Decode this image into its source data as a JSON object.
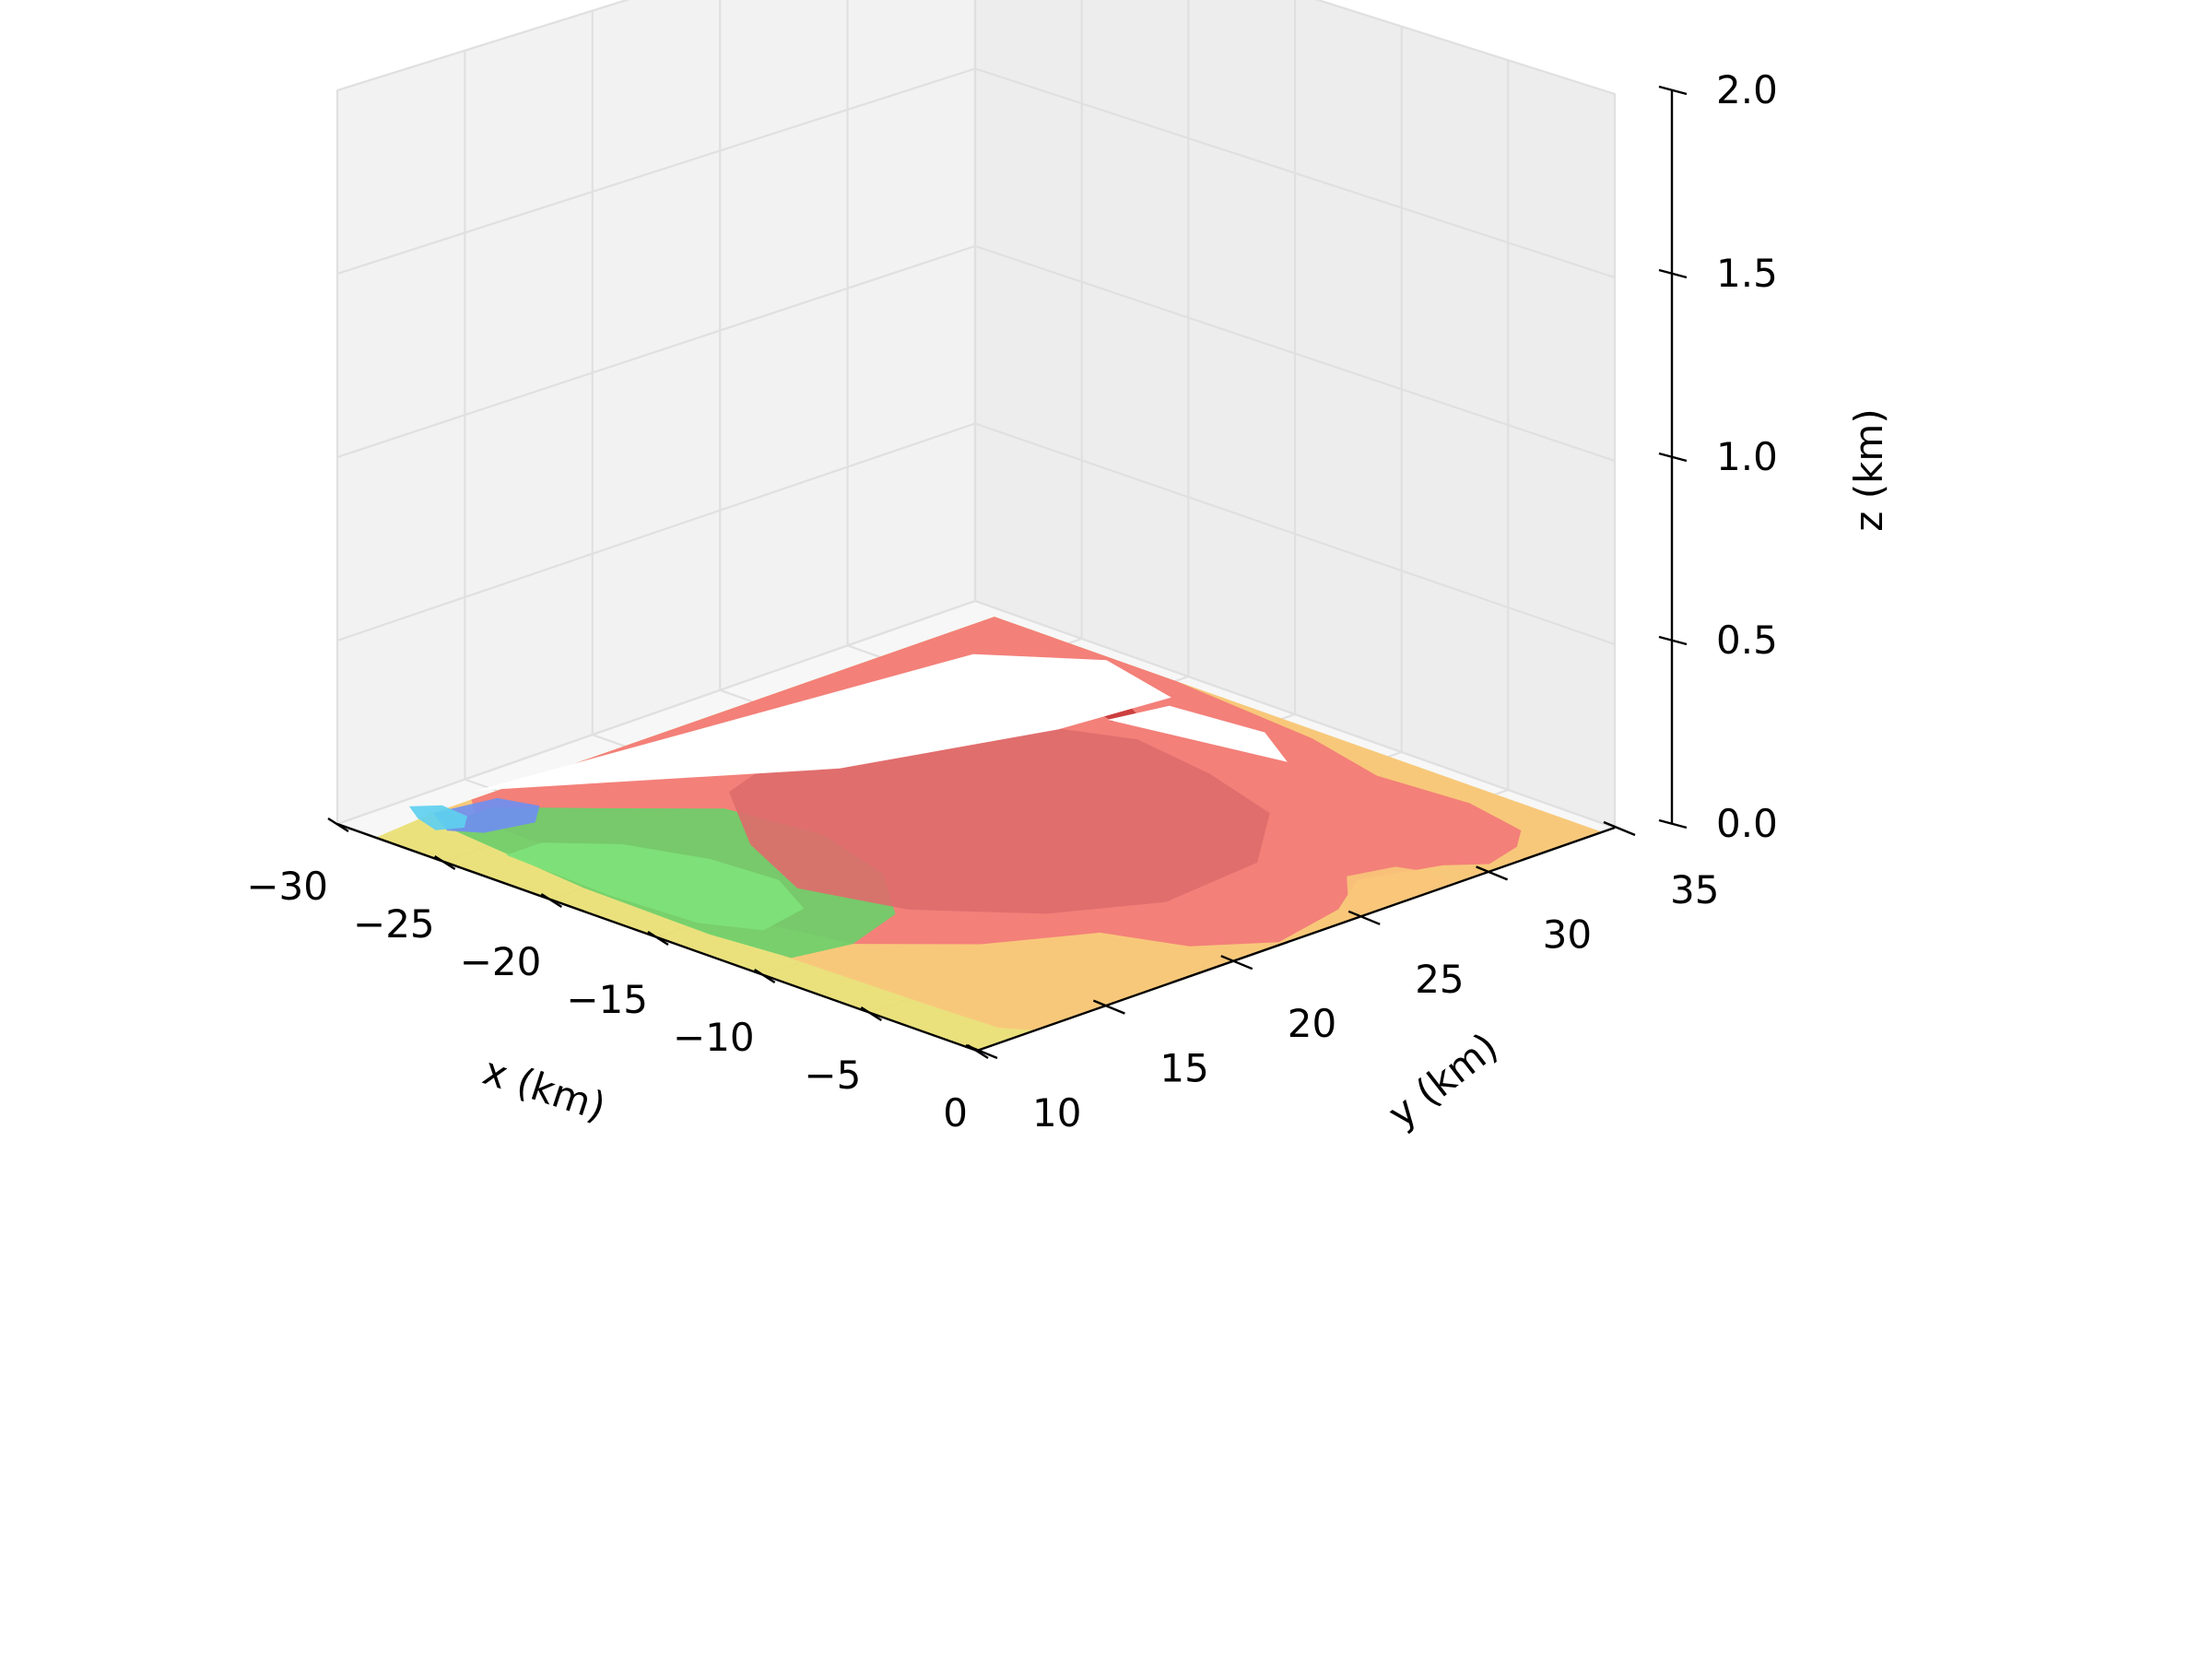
{
  "chart_data": {
    "type": "3d-contour",
    "title": "",
    "xlabel": "x (km)",
    "ylabel": "y (km)",
    "zlabel": "z (km)",
    "xlim": [
      -30,
      0
    ],
    "ylim": [
      10,
      35
    ],
    "zlim": [
      0,
      2
    ],
    "xticks": [
      -30,
      -25,
      -20,
      -15,
      -10,
      -5,
      0
    ],
    "yticks": [
      10,
      15,
      20,
      25,
      30,
      35
    ],
    "zticks": [
      0.0,
      0.5,
      1.0,
      1.5,
      2.0
    ],
    "xtick_labels": [
      "−30",
      "−25",
      "−20",
      "−15",
      "−10",
      "−5",
      "0"
    ],
    "ytick_labels": [
      "10",
      "15",
      "20",
      "25",
      "30",
      "35"
    ],
    "ztick_labels": [
      "0.0",
      "0.5",
      "1.0",
      "1.5",
      "2.0"
    ],
    "grid": true,
    "contour_plane_z": 0,
    "contour_levels": [
      {
        "name": "light-blue",
        "color": "#5ecfef"
      },
      {
        "name": "blue",
        "color": "#6f8ff0"
      },
      {
        "name": "green",
        "color": "#6dcf6a"
      },
      {
        "name": "light-green",
        "color": "#7fe27a"
      },
      {
        "name": "yellow",
        "color": "#e8de72"
      },
      {
        "name": "orange",
        "color": "#f8c57a"
      },
      {
        "name": "red",
        "color": "#f27a78"
      },
      {
        "name": "dark-red",
        "color": "#de6c6c"
      },
      {
        "name": "crimson",
        "color": "#c83a3a"
      }
    ],
    "regions": [
      {
        "level": "yellow",
        "polygon": [
          [
            -28.5,
            12.5
          ],
          [
            -28.2,
            10
          ],
          [
            0,
            10
          ],
          [
            0,
            34.5
          ],
          [
            -28.5,
            34.5
          ]
        ]
      },
      {
        "level": "orange",
        "polygon": [
          [
            -28.5,
            13
          ],
          [
            -27.5,
            12
          ],
          [
            -20,
            11.6
          ],
          [
            -14,
            11.4
          ],
          [
            -9,
            11.5
          ],
          [
            -4,
            11.6
          ],
          [
            -1,
            11.7
          ],
          [
            -0.5,
            12
          ],
          [
            0,
            12.3
          ],
          [
            0,
            34.5
          ],
          [
            -28.5,
            34.5
          ]
        ]
      },
      {
        "level": "red",
        "polygon": [
          [
            -28.5,
            14
          ],
          [
            -27,
            13
          ],
          [
            -20,
            12.8
          ],
          [
            -14,
            12.8
          ],
          [
            -10,
            13.5
          ],
          [
            -7,
            16
          ],
          [
            -5,
            19
          ],
          [
            -2,
            20
          ],
          [
            -0.2,
            22
          ],
          [
            -1,
            25
          ],
          [
            -2.5,
            27
          ],
          [
            -1.5,
            29.5
          ],
          [
            -0.5,
            30.5
          ],
          [
            -1,
            32
          ],
          [
            -2,
            33
          ],
          [
            -5,
            33.5
          ],
          [
            -9,
            33.2
          ],
          [
            -13,
            34
          ],
          [
            -20,
            34.5
          ],
          [
            -28.5,
            34.5
          ]
        ]
      },
      {
        "level": "orange",
        "polygon": [
          [
            -0.3,
            24.5
          ],
          [
            -1.5,
            25.8
          ],
          [
            -3,
            27
          ],
          [
            -2.5,
            28.5
          ],
          [
            -1,
            29
          ],
          [
            0,
            28.5
          ]
        ]
      },
      {
        "level": "green",
        "polygon": [
          [
            -27.5,
            12
          ],
          [
            -20,
            11.3
          ],
          [
            -14,
            11.2
          ],
          [
            -10.5,
            11.5
          ],
          [
            -10,
            13.5
          ],
          [
            -11,
            16
          ],
          [
            -14,
            18
          ],
          [
            -18,
            19
          ],
          [
            -22,
            18.5
          ],
          [
            -25,
            16
          ],
          [
            -27.5,
            14
          ]
        ]
      },
      {
        "level": "light-green",
        "polygon": [
          [
            -24,
            11.6
          ],
          [
            -19,
            11.4
          ],
          [
            -15,
            11.6
          ],
          [
            -13,
            12.5
          ],
          [
            -13.5,
            14.5
          ],
          [
            -16,
            15.6
          ],
          [
            -19,
            15.4
          ],
          [
            -22,
            14.5
          ],
          [
            -24,
            13
          ]
        ]
      },
      {
        "level": "blue",
        "polygon": [
          [
            -28.5,
            12.5
          ],
          [
            -27,
            11.8
          ],
          [
            -26,
            12.4
          ],
          [
            -25.5,
            14
          ],
          [
            -26.5,
            15
          ],
          [
            -28,
            14.6
          ]
        ]
      },
      {
        "level": "light-blue",
        "polygon": [
          [
            -29.5,
            12.4
          ],
          [
            -28.5,
            11.9
          ],
          [
            -27.3,
            11.6
          ],
          [
            -26.8,
            12.3
          ],
          [
            -27.5,
            13
          ],
          [
            -28.8,
            13.1
          ]
        ]
      },
      {
        "level": "dark-red",
        "polygon": [
          [
            -23,
            19.5
          ],
          [
            -19,
            17
          ],
          [
            -15,
            15.5
          ],
          [
            -11,
            16.5
          ],
          [
            -7.5,
            19
          ],
          [
            -5.5,
            22
          ],
          [
            -6,
            26
          ],
          [
            -9,
            29
          ],
          [
            -13,
            30
          ],
          [
            -17,
            30.5
          ],
          [
            -21,
            29
          ],
          [
            -23.5,
            26
          ],
          [
            -24,
            22
          ]
        ]
      },
      {
        "level": "crimson",
        "polygon": [
          [
            -24,
            28.5
          ],
          [
            -22.5,
            27.8
          ],
          [
            -21.2,
            28.3
          ],
          [
            -21.5,
            30
          ],
          [
            -23,
            30.7
          ],
          [
            -24.4,
            29.9
          ]
        ]
      },
      {
        "level": "crimson",
        "polygon": [
          [
            -19.6,
            31.2
          ],
          [
            -18.8,
            31
          ],
          [
            -18.5,
            31.8
          ],
          [
            -19.4,
            32.2
          ]
        ]
      }
    ],
    "gaps": [
      {
        "polygon": [
          [
            -29,
            14.6
          ],
          [
            -22,
            23
          ],
          [
            -19.5,
            29.5
          ],
          [
            -19,
            33.5
          ],
          [
            -23,
            34.3
          ],
          [
            -26.5,
            32
          ]
        ]
      },
      {
        "polygon": [
          [
            -19,
            31
          ],
          [
            -12,
            32.2
          ],
          [
            -14.5,
            33.4
          ],
          [
            -18.5,
            33
          ]
        ]
      }
    ]
  }
}
